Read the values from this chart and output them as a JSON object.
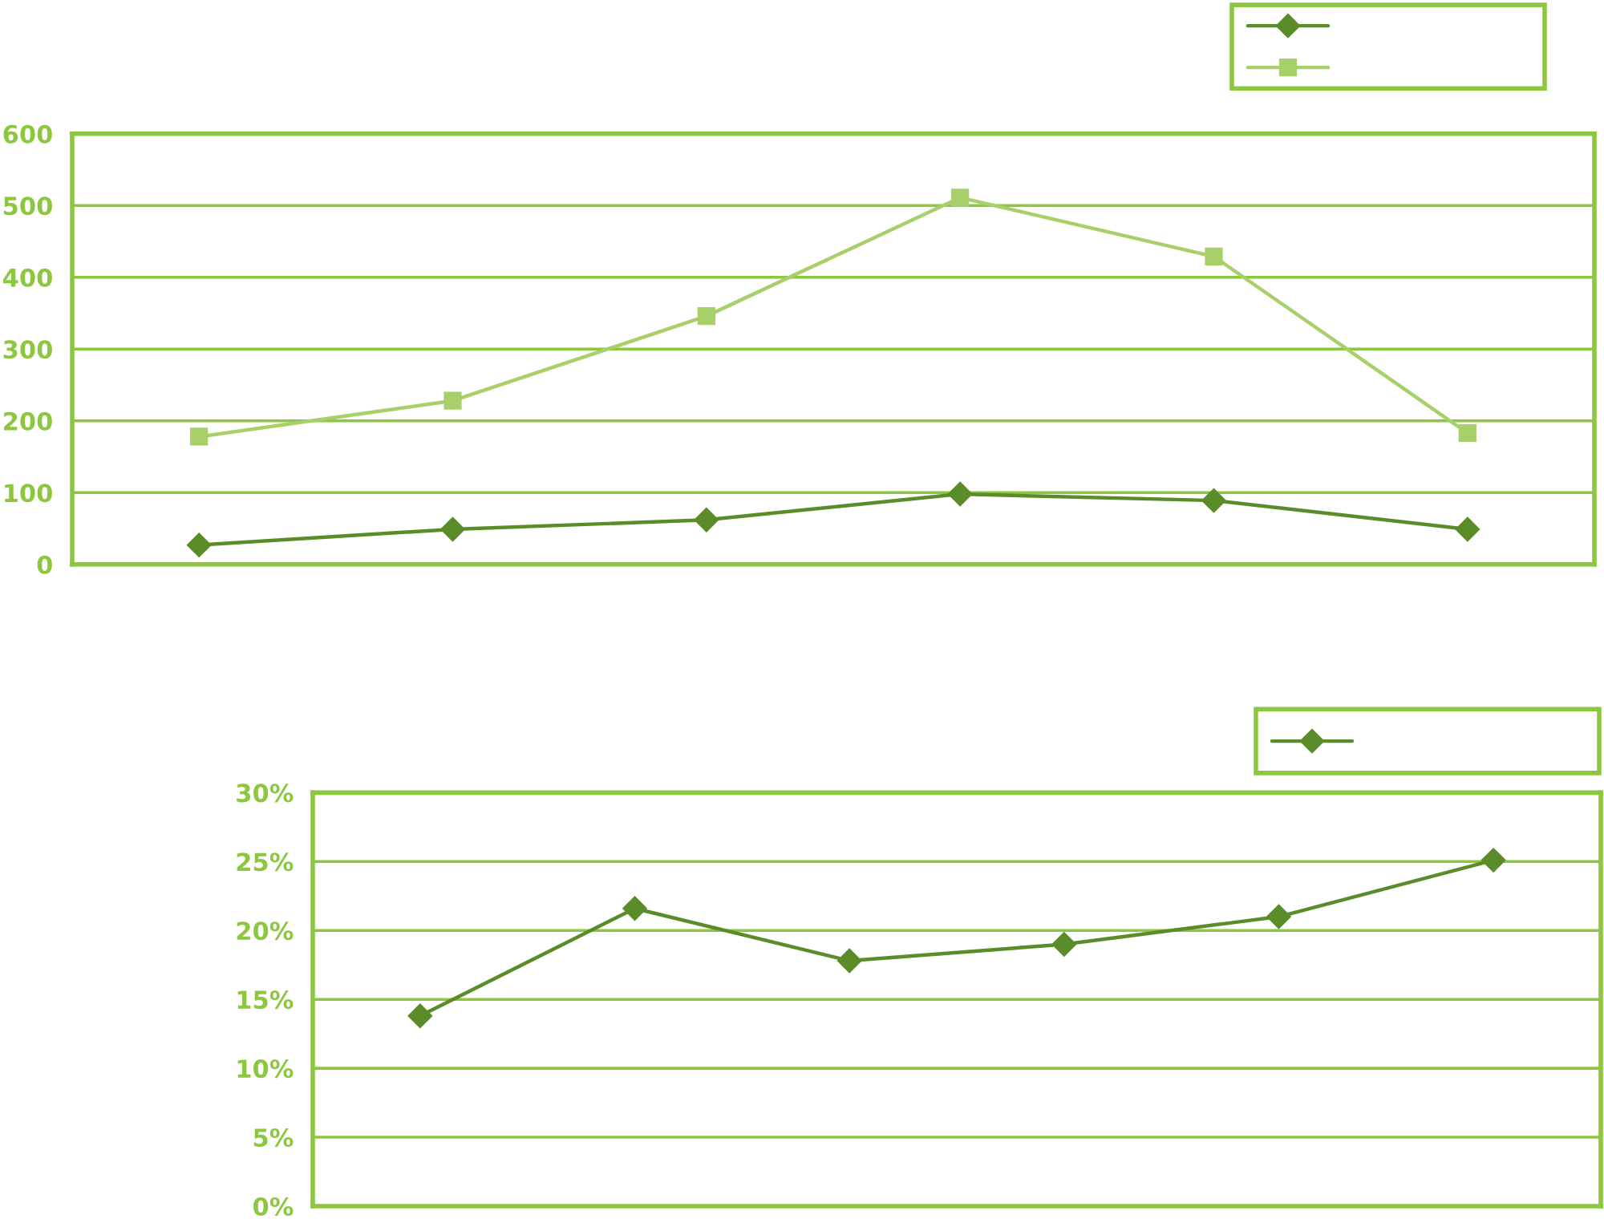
{
  "chart_data": [
    {
      "type": "line",
      "categories": [
        null,
        null,
        null,
        null,
        null,
        null
      ],
      "ylim": [
        0,
        600
      ],
      "yticks": [
        0,
        100,
        200,
        300,
        400,
        500,
        600
      ],
      "grid": "y",
      "tick_labels": "y",
      "series": [
        {
          "color": "#5b8c2a",
          "marker": "diamond",
          "values": [
            27,
            49,
            62,
            98,
            89,
            49
          ]
        },
        {
          "color": "#a8d06a",
          "marker": "square",
          "values": [
            178,
            228,
            346,
            511,
            429,
            183
          ]
        }
      ]
    },
    {
      "type": "line",
      "categories": [
        null,
        null,
        null,
        null,
        null,
        null
      ],
      "ylim": [
        0,
        30
      ],
      "yticks": [
        {
          "value": 0,
          "label": "0%"
        },
        {
          "value": 5,
          "label": "5%"
        },
        {
          "value": 10,
          "label": "10%"
        },
        {
          "value": 15,
          "label": "15%"
        },
        {
          "value": 20,
          "label": "20%"
        },
        {
          "value": 25,
          "label": "25%"
        },
        {
          "value": 30,
          "label": "30%"
        }
      ],
      "grid": "y",
      "tick_labels": "y",
      "series": [
        {
          "color": "#5b8c2a",
          "marker": "diamond",
          "values": [
            13.8,
            21.6,
            17.8,
            19.0,
            21.0,
            25.1
          ]
        }
      ]
    }
  ]
}
